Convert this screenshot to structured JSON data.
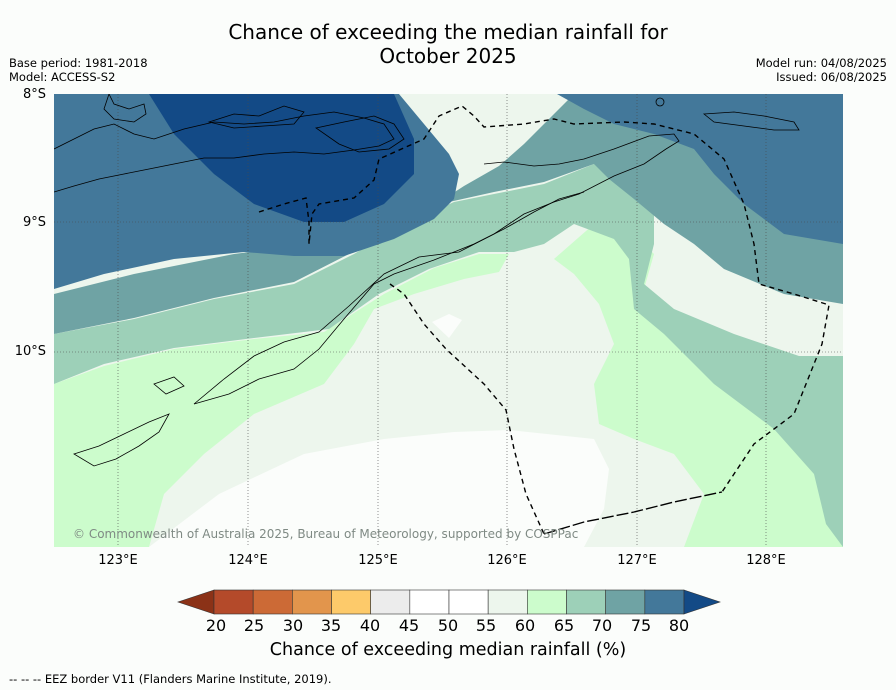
{
  "title_line1": "Chance of exceeding the median rainfall for",
  "title_line2": "October 2025",
  "meta_left": [
    "Base period: 1981-2018",
    "Model: ACCESS-S2"
  ],
  "meta_right": [
    "Model run: 04/08/2025",
    "Issued: 06/08/2025"
  ],
  "lat_labels": [
    "8°S",
    "9°S",
    "10°S"
  ],
  "lon_labels": [
    "123°E",
    "124°E",
    "125°E",
    "126°E",
    "127°E",
    "128°E"
  ],
  "copyright": "© Commonwealth of Australia 2025, Bureau of Meteorology, supported by COSPPac",
  "colorbar": {
    "label": "Chance of exceeding median rainfall (%)",
    "ticks": [
      "20",
      "25",
      "30",
      "35",
      "40",
      "45",
      "50",
      "55",
      "60",
      "65",
      "70",
      "75",
      "80"
    ],
    "colors": [
      "#8b3217",
      "#b44a2a",
      "#cc6a36",
      "#e2954c",
      "#fdca6a",
      "#ececec",
      "#ffffff",
      "#ffffff",
      "#edf6ed",
      "#ccfccc",
      "#9dd0b8",
      "#6fa3a4",
      "#43789a",
      "#134a86"
    ]
  },
  "footer": "-- -- -- EEZ border V11 (Flanders Marine Institute, 2019)."
}
